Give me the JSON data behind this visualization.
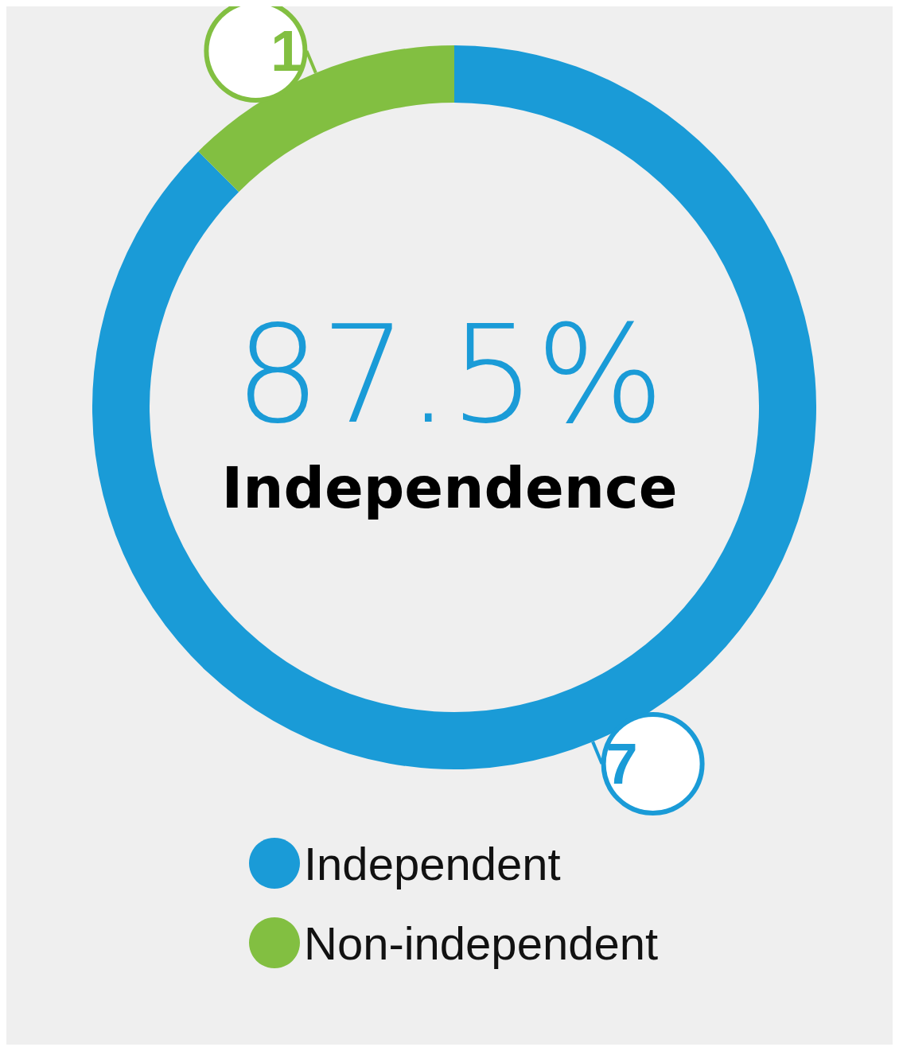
{
  "chart_data": {
    "type": "donut",
    "categories": [
      "Independent",
      "Non-independent"
    ],
    "values": [
      7,
      1
    ],
    "colors": [
      "#1a9bd7",
      "#82bf41"
    ],
    "data_labels": true,
    "legend": "bottom",
    "annotations": [
      "87.5%",
      "Independence"
    ]
  }
}
